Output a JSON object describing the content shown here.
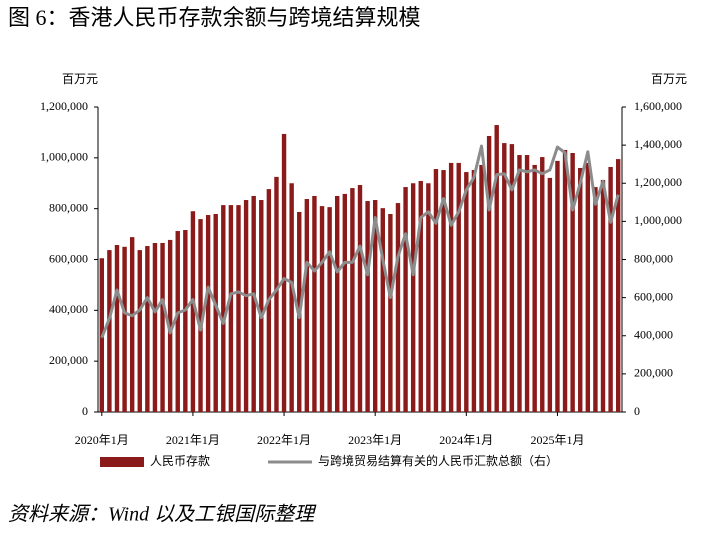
{
  "title": "图 6：香港人民币存款余额与跨境结算规模",
  "source": "资料来源：Wind 以及工银国际整理",
  "chart_data": {
    "type": "bar_line",
    "y_unit": "百万元",
    "y2_unit": "百万元",
    "categories": [
      "2020年1月",
      null,
      null,
      null,
      null,
      null,
      null,
      null,
      null,
      null,
      null,
      null,
      "2021年1月",
      null,
      null,
      null,
      null,
      null,
      null,
      null,
      null,
      null,
      null,
      null,
      "2022年1月",
      null,
      null,
      null,
      null,
      null,
      null,
      null,
      null,
      null,
      null,
      null,
      "2023年1月",
      null,
      null,
      null,
      null,
      null,
      null,
      null,
      null,
      null,
      null,
      null,
      "2024年1月",
      null,
      null,
      null,
      null,
      null,
      null,
      null,
      null,
      null,
      null,
      null,
      "2025年1月",
      null,
      null,
      null,
      null,
      null,
      null,
      null,
      null
    ],
    "series": [
      {
        "name": "人民币存款",
        "kind": "bar",
        "color": "#8b1a1a",
        "values": [
          605000,
          637000,
          657000,
          650000,
          688000,
          637000,
          653000,
          665000,
          665000,
          677000,
          712000,
          716000,
          790000,
          759000,
          775000,
          779000,
          814000,
          814000,
          814000,
          834000,
          850000,
          834000,
          877000,
          925000,
          1094000,
          900000,
          787000,
          838000,
          850000,
          810000,
          806000,
          850000,
          858000,
          881000,
          893000,
          830000,
          834000,
          802000,
          779000,
          822000,
          885000,
          900000,
          909000,
          900000,
          956000,
          952000,
          980000,
          980000,
          944000,
          952000,
          972000,
          1086000,
          1129000,
          1058000,
          1054000,
          1011000,
          1011000,
          972000,
          1003000,
          921000,
          988000,
          1031000,
          1019000,
          960000,
          980000,
          885000,
          913000,
          964000,
          995000
        ]
      },
      {
        "name": "与跨境贸易结算有关的人民币汇款总额（右）",
        "kind": "line",
        "axis": "y2",
        "color": "#8c8c8c",
        "values": [
          390000,
          490000,
          640000,
          520000,
          505000,
          535000,
          600000,
          525000,
          590000,
          415000,
          520000,
          535000,
          590000,
          430000,
          655000,
          560000,
          465000,
          620000,
          630000,
          610000,
          620000,
          495000,
          590000,
          640000,
          700000,
          680000,
          495000,
          785000,
          740000,
          785000,
          840000,
          735000,
          785000,
          785000,
          870000,
          720000,
          1020000,
          800000,
          600000,
          815000,
          935000,
          720000,
          1020000,
          1050000,
          990000,
          1120000,
          980000,
          1050000,
          1165000,
          1230000,
          1395000,
          1060000,
          1245000,
          1250000,
          1165000,
          1270000,
          1260000,
          1270000,
          1250000,
          1270000,
          1390000,
          1360000,
          1060000,
          1200000,
          1365000,
          1090000,
          1210000,
          995000,
          1140000
        ]
      }
    ],
    "ylim": [
      0,
      1200000
    ],
    "yticks": [
      0,
      {
        "value": 200000,
        "label": "200,000"
      },
      {
        "value": 400000,
        "label": "400,000"
      },
      {
        "value": 600000,
        "label": "600,000"
      },
      {
        "value": 800000,
        "label": "800,000"
      },
      {
        "value": 1000000,
        "label": "1,000,000"
      },
      {
        "value": 1200000,
        "label": "1,200,000"
      }
    ],
    "y2lim": [
      0,
      1600000
    ],
    "y2ticks": [
      0,
      {
        "value": 200000,
        "label": "200,000"
      },
      {
        "value": 400000,
        "label": "400,000"
      },
      {
        "value": 600000,
        "label": "600,000"
      },
      {
        "value": 800000,
        "label": "800,000"
      },
      {
        "value": 1000000,
        "label": "1,000,000"
      },
      {
        "value": 1200000,
        "label": "1,200,000"
      },
      {
        "value": 1400000,
        "label": "1,400,000"
      },
      {
        "value": 1600000,
        "label": "1,600,000"
      }
    ]
  }
}
